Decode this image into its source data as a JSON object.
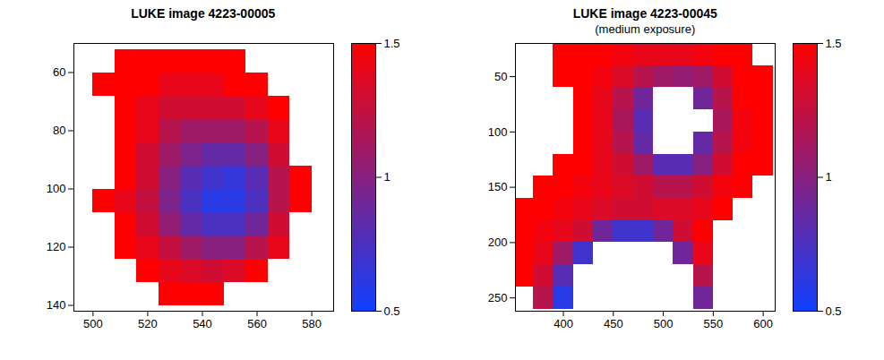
{
  "chart_data": [
    {
      "type": "heatmap",
      "title": "LUKE image 4223-00005",
      "x_edges": [
        500,
        508,
        516,
        524,
        532,
        540,
        548,
        556,
        564,
        572,
        580
      ],
      "y_edges": [
        52,
        60,
        68,
        76,
        84,
        92,
        100,
        108,
        116,
        124,
        132,
        140
      ],
      "cells": [
        [
          null,
          1.5,
          1.5,
          1.5,
          1.5,
          1.5,
          1.5,
          null,
          null,
          null
        ],
        [
          1.5,
          1.5,
          1.5,
          1.4,
          1.4,
          1.4,
          1.5,
          1.5,
          null,
          null
        ],
        [
          null,
          1.5,
          1.4,
          1.3,
          1.3,
          1.3,
          1.3,
          1.4,
          1.5,
          null
        ],
        [
          null,
          1.5,
          1.4,
          1.2,
          1.1,
          1.1,
          1.1,
          1.2,
          1.4,
          null
        ],
        [
          null,
          1.5,
          1.3,
          1.1,
          0.95,
          0.85,
          0.85,
          1.0,
          1.3,
          null
        ],
        [
          null,
          1.5,
          1.3,
          1.0,
          0.8,
          0.7,
          0.65,
          0.8,
          1.2,
          1.5
        ],
        [
          1.5,
          1.4,
          1.25,
          0.95,
          0.75,
          0.6,
          0.6,
          0.75,
          1.2,
          1.5
        ],
        [
          null,
          1.5,
          1.3,
          1.05,
          0.85,
          0.75,
          0.75,
          0.9,
          1.3,
          null
        ],
        [
          null,
          1.5,
          1.4,
          1.25,
          1.1,
          1.0,
          1.0,
          1.2,
          1.4,
          null
        ],
        [
          null,
          null,
          1.5,
          1.4,
          1.35,
          1.3,
          1.35,
          1.5,
          null,
          null
        ],
        [
          null,
          null,
          null,
          1.5,
          1.5,
          1.5,
          null,
          null,
          null,
          null
        ]
      ],
      "xlim": [
        493,
        588
      ],
      "ylim": [
        142,
        50
      ],
      "xticks": [
        500,
        520,
        540,
        560,
        580
      ],
      "yticks": [
        60,
        80,
        100,
        120,
        140
      ],
      "colorbar": {
        "range": [
          0.5,
          1.5
        ],
        "ticks": [
          0.5,
          1,
          1.5
        ]
      },
      "colors": [
        "#1040ff",
        "#ff0000"
      ]
    },
    {
      "type": "heatmap",
      "title": "LUKE image 4223-00045",
      "subtitle": "(medium exposure)",
      "x_edges": [
        350,
        370,
        390,
        410,
        430,
        450,
        470,
        490,
        510,
        530,
        550,
        570,
        590,
        610
      ],
      "y_edges": [
        20,
        40,
        60,
        80,
        100,
        120,
        140,
        160,
        180,
        200,
        220,
        240,
        260
      ],
      "cells": [
        [
          null,
          null,
          1.5,
          1.5,
          1.5,
          1.45,
          1.4,
          1.4,
          1.4,
          1.45,
          1.5,
          1.5,
          null
        ],
        [
          null,
          null,
          1.5,
          1.5,
          1.45,
          1.35,
          1.2,
          1.1,
          1.05,
          1.1,
          1.3,
          1.5,
          1.5
        ],
        [
          null,
          null,
          null,
          1.5,
          1.4,
          1.2,
          0.9,
          null,
          null,
          0.9,
          1.2,
          1.5,
          1.5
        ],
        [
          null,
          null,
          null,
          1.5,
          1.4,
          1.15,
          0.8,
          null,
          null,
          null,
          1.15,
          1.45,
          1.5
        ],
        [
          null,
          null,
          null,
          1.5,
          1.4,
          1.2,
          0.85,
          null,
          null,
          0.85,
          1.2,
          1.45,
          1.5
        ],
        [
          null,
          null,
          1.5,
          1.5,
          1.4,
          1.3,
          1.1,
          0.8,
          0.8,
          1.0,
          1.3,
          1.5,
          1.5
        ],
        [
          null,
          1.5,
          1.5,
          1.45,
          1.4,
          1.35,
          1.3,
          1.2,
          1.2,
          1.3,
          1.45,
          1.5,
          null
        ],
        [
          1.5,
          1.5,
          1.45,
          1.4,
          1.35,
          1.3,
          1.3,
          1.35,
          1.35,
          1.4,
          1.5,
          null,
          null
        ],
        [
          1.5,
          1.45,
          1.4,
          1.3,
          0.9,
          0.7,
          0.7,
          0.9,
          1.3,
          1.5,
          null,
          null,
          null
        ],
        [
          1.5,
          1.4,
          1.1,
          0.7,
          null,
          null,
          null,
          null,
          0.9,
          1.4,
          null,
          null,
          null
        ],
        [
          1.5,
          1.3,
          0.8,
          null,
          null,
          null,
          null,
          null,
          null,
          1.2,
          null,
          null,
          null
        ],
        [
          null,
          1.2,
          0.6,
          null,
          null,
          null,
          null,
          null,
          null,
          0.9,
          null,
          null,
          null
        ]
      ],
      "xlim": [
        352,
        612
      ],
      "ylim": [
        262,
        20
      ],
      "xticks": [
        400,
        450,
        500,
        550,
        600
      ],
      "yticks": [
        50,
        100,
        150,
        200,
        250
      ],
      "colorbar": {
        "range": [
          0.5,
          1.5
        ],
        "ticks": [
          0.5,
          1,
          1.5
        ]
      },
      "colors": [
        "#1040ff",
        "#ff0000"
      ]
    }
  ]
}
